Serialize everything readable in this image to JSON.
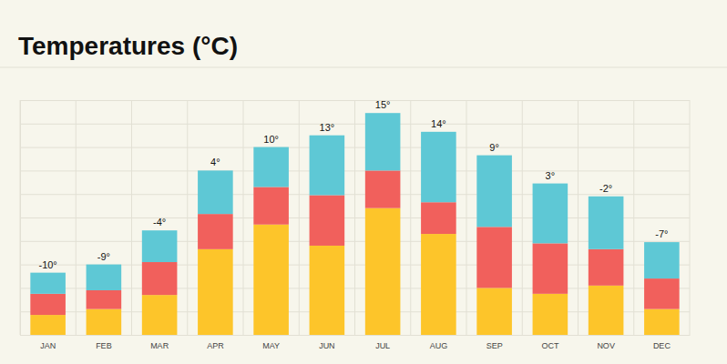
{
  "chart_data": {
    "type": "bar",
    "title": "Temperatures (°C)",
    "categories": [
      "JAN",
      "FEB",
      "MAR",
      "APR",
      "MAY",
      "JUN",
      "JUL",
      "AUG",
      "SEP",
      "OCT",
      "NOV",
      "DEC"
    ],
    "annotations": [
      "-10°",
      "-9°",
      "-4°",
      "4°",
      "10°",
      "13°",
      "15°",
      "14°",
      "9°",
      "3°",
      "-2°",
      "-7°"
    ],
    "series": [
      {
        "color": "#fdc52a",
        "values": [
          0.85,
          1.1,
          1.7,
          3.65,
          4.7,
          3.8,
          5.4,
          4.3,
          2.0,
          1.75,
          2.1,
          1.1
        ]
      },
      {
        "color": "#f1605c",
        "values": [
          0.9,
          0.8,
          1.4,
          1.5,
          1.6,
          2.15,
          1.6,
          1.35,
          2.6,
          2.15,
          1.55,
          1.3
        ]
      },
      {
        "color": "#5ec8d5",
        "values": [
          0.9,
          1.1,
          1.35,
          1.85,
          1.7,
          2.55,
          2.45,
          3.0,
          3.05,
          2.55,
          2.25,
          1.55
        ]
      }
    ],
    "stacked": true,
    "ylim": [
      0,
      10
    ],
    "yticks": [
      0,
      1,
      2,
      3,
      4,
      5,
      6,
      7,
      8,
      9,
      10
    ],
    "grid": true,
    "tick_labels": "x"
  }
}
